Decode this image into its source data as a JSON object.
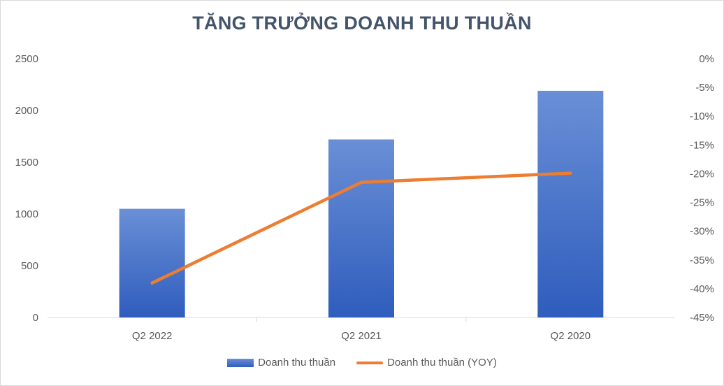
{
  "chart_data": {
    "type": "bar",
    "title": "TĂNG TRƯỞNG DOANH THU THUẦN",
    "categories": [
      "Q2 2022",
      "Q2 2021",
      "Q2 2020"
    ],
    "series": [
      {
        "name": "Doanh thu thuần",
        "type": "bar",
        "axis": "left",
        "values": [
          1050,
          1720,
          2190
        ],
        "color": "#4472c4"
      },
      {
        "name": "Doanh thu thuần (YOY)",
        "type": "line",
        "axis": "right",
        "values": [
          -0.39,
          -0.215,
          -0.199
        ],
        "color": "#ed7d31"
      }
    ],
    "y_left": {
      "ylim": [
        0,
        2500
      ],
      "ticks": [
        0,
        500,
        1000,
        1500,
        2000,
        2500
      ],
      "tick_labels": [
        "0",
        "500",
        "1000",
        "1500",
        "2000",
        "2500"
      ]
    },
    "y_right": {
      "ylim": [
        -0.45,
        0
      ],
      "ticks": [
        0,
        -0.05,
        -0.1,
        -0.15,
        -0.2,
        -0.25,
        -0.3,
        -0.35,
        -0.4,
        -0.45
      ],
      "tick_labels": [
        "0%",
        "-5%",
        "-10%",
        "-15%",
        "-20%",
        "-25%",
        "-30%",
        "-35%",
        "-40%",
        "-45%"
      ]
    },
    "grid": false,
    "legend_position": "bottom"
  }
}
